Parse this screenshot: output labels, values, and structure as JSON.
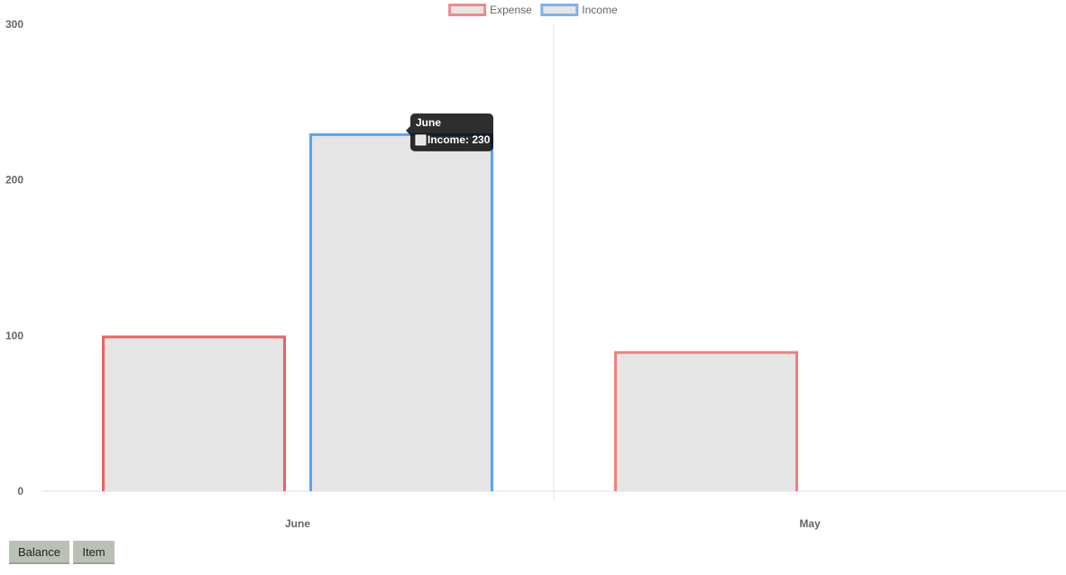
{
  "chart_data": {
    "type": "bar",
    "categories": [
      "June",
      "May"
    ],
    "series": [
      {
        "name": "Expense",
        "values": [
          100,
          90
        ],
        "border_colors": [
          "#f06060",
          "#f0807a"
        ],
        "fill": "#e5e5e5"
      },
      {
        "name": "Income",
        "values": [
          230,
          null
        ],
        "border_colors": [
          "#5aa3ee",
          "#5aa3ee"
        ],
        "fill": "#e5e5e5"
      }
    ],
    "ylim": [
      0,
      300
    ],
    "yticks": [
      0,
      100,
      200,
      300
    ],
    "legend": {
      "position": "top",
      "items": [
        "Expense",
        "Income"
      ]
    },
    "legend_colors": {
      "Expense": "#f08a8a",
      "Income": "#7fb0ee"
    },
    "tooltip": {
      "title": "June",
      "label": "Income: 230",
      "series": "Income",
      "category": "June"
    }
  },
  "buttons": {
    "balance": "Balance",
    "item": "Item"
  }
}
